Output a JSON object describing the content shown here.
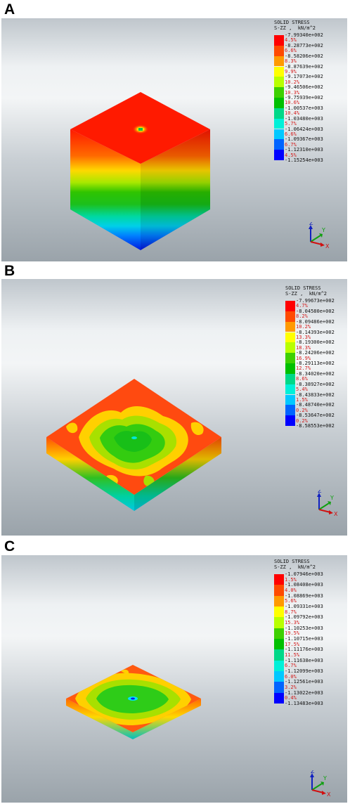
{
  "panels": [
    {
      "letter": "A",
      "legend": {
        "title": "SOLID STRESS",
        "subtitle": "S-ZZ ,  kN/m^2",
        "bands": [
          {
            "pct": "4.5%",
            "color": "#ff0000"
          },
          {
            "pct": "6.6%",
            "color": "#ff4a00"
          },
          {
            "pct": "8.3%",
            "color": "#ff9a00"
          },
          {
            "pct": "9.9%",
            "color": "#ffff00"
          },
          {
            "pct": "10.2%",
            "color": "#b8ff00"
          },
          {
            "pct": "10.3%",
            "color": "#3dd000"
          },
          {
            "pct": "10.6%",
            "color": "#00c000"
          },
          {
            "pct": "10.4%",
            "color": "#00d888"
          },
          {
            "pct": "5.7%",
            "color": "#00f0d8"
          },
          {
            "pct": "6.6%",
            "color": "#00c8ff"
          },
          {
            "pct": "6.7%",
            "color": "#0064ff"
          },
          {
            "pct": "4.5%",
            "color": "#0000ff"
          }
        ],
        "ticks": [
          "-7.99340e+002",
          "-8.28773e+002",
          "-8.58206e+002",
          "-8.87639e+002",
          "-9.17073e+002",
          "-9.46506e+002",
          "-9.75939e+002",
          "-1.00537e+003",
          "-1.03480e+003",
          "-1.06424e+003",
          "-1.09367e+003",
          "-1.12310e+003",
          "-1.15254e+003"
        ]
      },
      "triad": {
        "z": "Z",
        "y": "Y",
        "x": "X"
      }
    },
    {
      "letter": "B",
      "legend": {
        "title": "SOLID STRESS",
        "subtitle": "S-ZZ ,  kN/m^2",
        "bands": [
          {
            "pct": "4.7%",
            "color": "#ff0000"
          },
          {
            "pct": "8.2%",
            "color": "#ff4a00"
          },
          {
            "pct": "10.2%",
            "color": "#ff9a00"
          },
          {
            "pct": "13.3%",
            "color": "#ffff00"
          },
          {
            "pct": "18.3%",
            "color": "#b8ff00"
          },
          {
            "pct": "16.9%",
            "color": "#3dd000"
          },
          {
            "pct": "12.7%",
            "color": "#00c000"
          },
          {
            "pct": "8.6%",
            "color": "#00d888"
          },
          {
            "pct": "5.4%",
            "color": "#00f0d8"
          },
          {
            "pct": "1.5%",
            "color": "#00c8ff"
          },
          {
            "pct": "0.2%",
            "color": "#0064ff"
          },
          {
            "pct": "0.2%",
            "color": "#0000ff"
          }
        ],
        "ticks": [
          "-7.99673e+002",
          "-8.04580e+002",
          "-8.09486e+002",
          "-8.14393e+002",
          "-8.19300e+002",
          "-8.24206e+002",
          "-8.29113e+002",
          "-8.34020e+002",
          "-8.38927e+002",
          "-8.43833e+002",
          "-8.48740e+002",
          "-8.53647e+002",
          "-8.58553e+002"
        ]
      },
      "triad": {
        "z": "Z",
        "y": "Y",
        "x": "X"
      }
    },
    {
      "letter": "C",
      "legend": {
        "title": "SOLID STRESS",
        "subtitle": "S-ZZ ,  kN/m^2",
        "bands": [
          {
            "pct": "1.5%",
            "color": "#ff0000"
          },
          {
            "pct": "4.0%",
            "color": "#ff4a00"
          },
          {
            "pct": "5.6%",
            "color": "#ff9a00"
          },
          {
            "pct": "8.7%",
            "color": "#ffff00"
          },
          {
            "pct": "15.3%",
            "color": "#b8ff00"
          },
          {
            "pct": "19.5%",
            "color": "#3dd000"
          },
          {
            "pct": "17.5%",
            "color": "#00c000"
          },
          {
            "pct": "11.5%",
            "color": "#00d888"
          },
          {
            "pct": "6.7%",
            "color": "#00f0d8"
          },
          {
            "pct": "6.0%",
            "color": "#00c8ff"
          },
          {
            "pct": "3.2%",
            "color": "#0064ff"
          },
          {
            "pct": "0.4%",
            "color": "#0000ff"
          }
        ],
        "ticks": [
          "-1.07946e+003",
          "-1.08408e+003",
          "-1.08869e+003",
          "-1.09331e+003",
          "-1.09792e+003",
          "-1.10253e+003",
          "-1.10715e+003",
          "-1.11176e+003",
          "-1.11638e+003",
          "-1.12099e+003",
          "-1.12561e+003",
          "-1.13022e+003",
          "-1.13483e+003"
        ]
      },
      "triad": {
        "z": "Z",
        "y": "Y",
        "x": "X"
      }
    }
  ]
}
